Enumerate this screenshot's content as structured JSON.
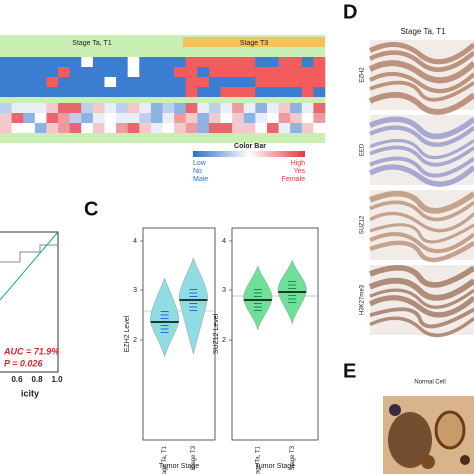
{
  "panel_heatmap": {
    "groups": [
      "Stage Ta, T1",
      "Stage T3"
    ],
    "color_bar": {
      "title": "Color Bar",
      "rows": [
        [
          "Low",
          "High"
        ],
        [
          "No",
          "Yes"
        ],
        [
          "Male",
          "Female"
        ]
      ]
    }
  },
  "panel_roc": {
    "x_ticks": [
      "0.6",
      "0.8",
      "1.0"
    ],
    "x_label": "icity",
    "auc": "AUC = 71.9%",
    "p": "P = 0.026"
  },
  "panel_c": {
    "letter": "C",
    "plots": [
      {
        "y_label": "EZH2 Level",
        "y_ticks": [
          "2",
          "3",
          "4"
        ],
        "x_label": "Tumor Stage",
        "categories": [
          "Stage Ta, T1",
          "Stage T3"
        ]
      },
      {
        "y_label": "SUZ12 Level",
        "y_ticks": [
          "2",
          "3",
          "4"
        ],
        "x_label": "Tumor Stage",
        "categories": [
          "Stage Ta, T1",
          "Stage T3"
        ]
      }
    ]
  },
  "panel_d": {
    "letter": "D",
    "title": "Stage Ta, T1",
    "rows": [
      "EZH2",
      "EED",
      "SUZ12",
      "H3K27me3"
    ]
  },
  "panel_e": {
    "letter": "E",
    "title": "Normal Cell"
  }
}
